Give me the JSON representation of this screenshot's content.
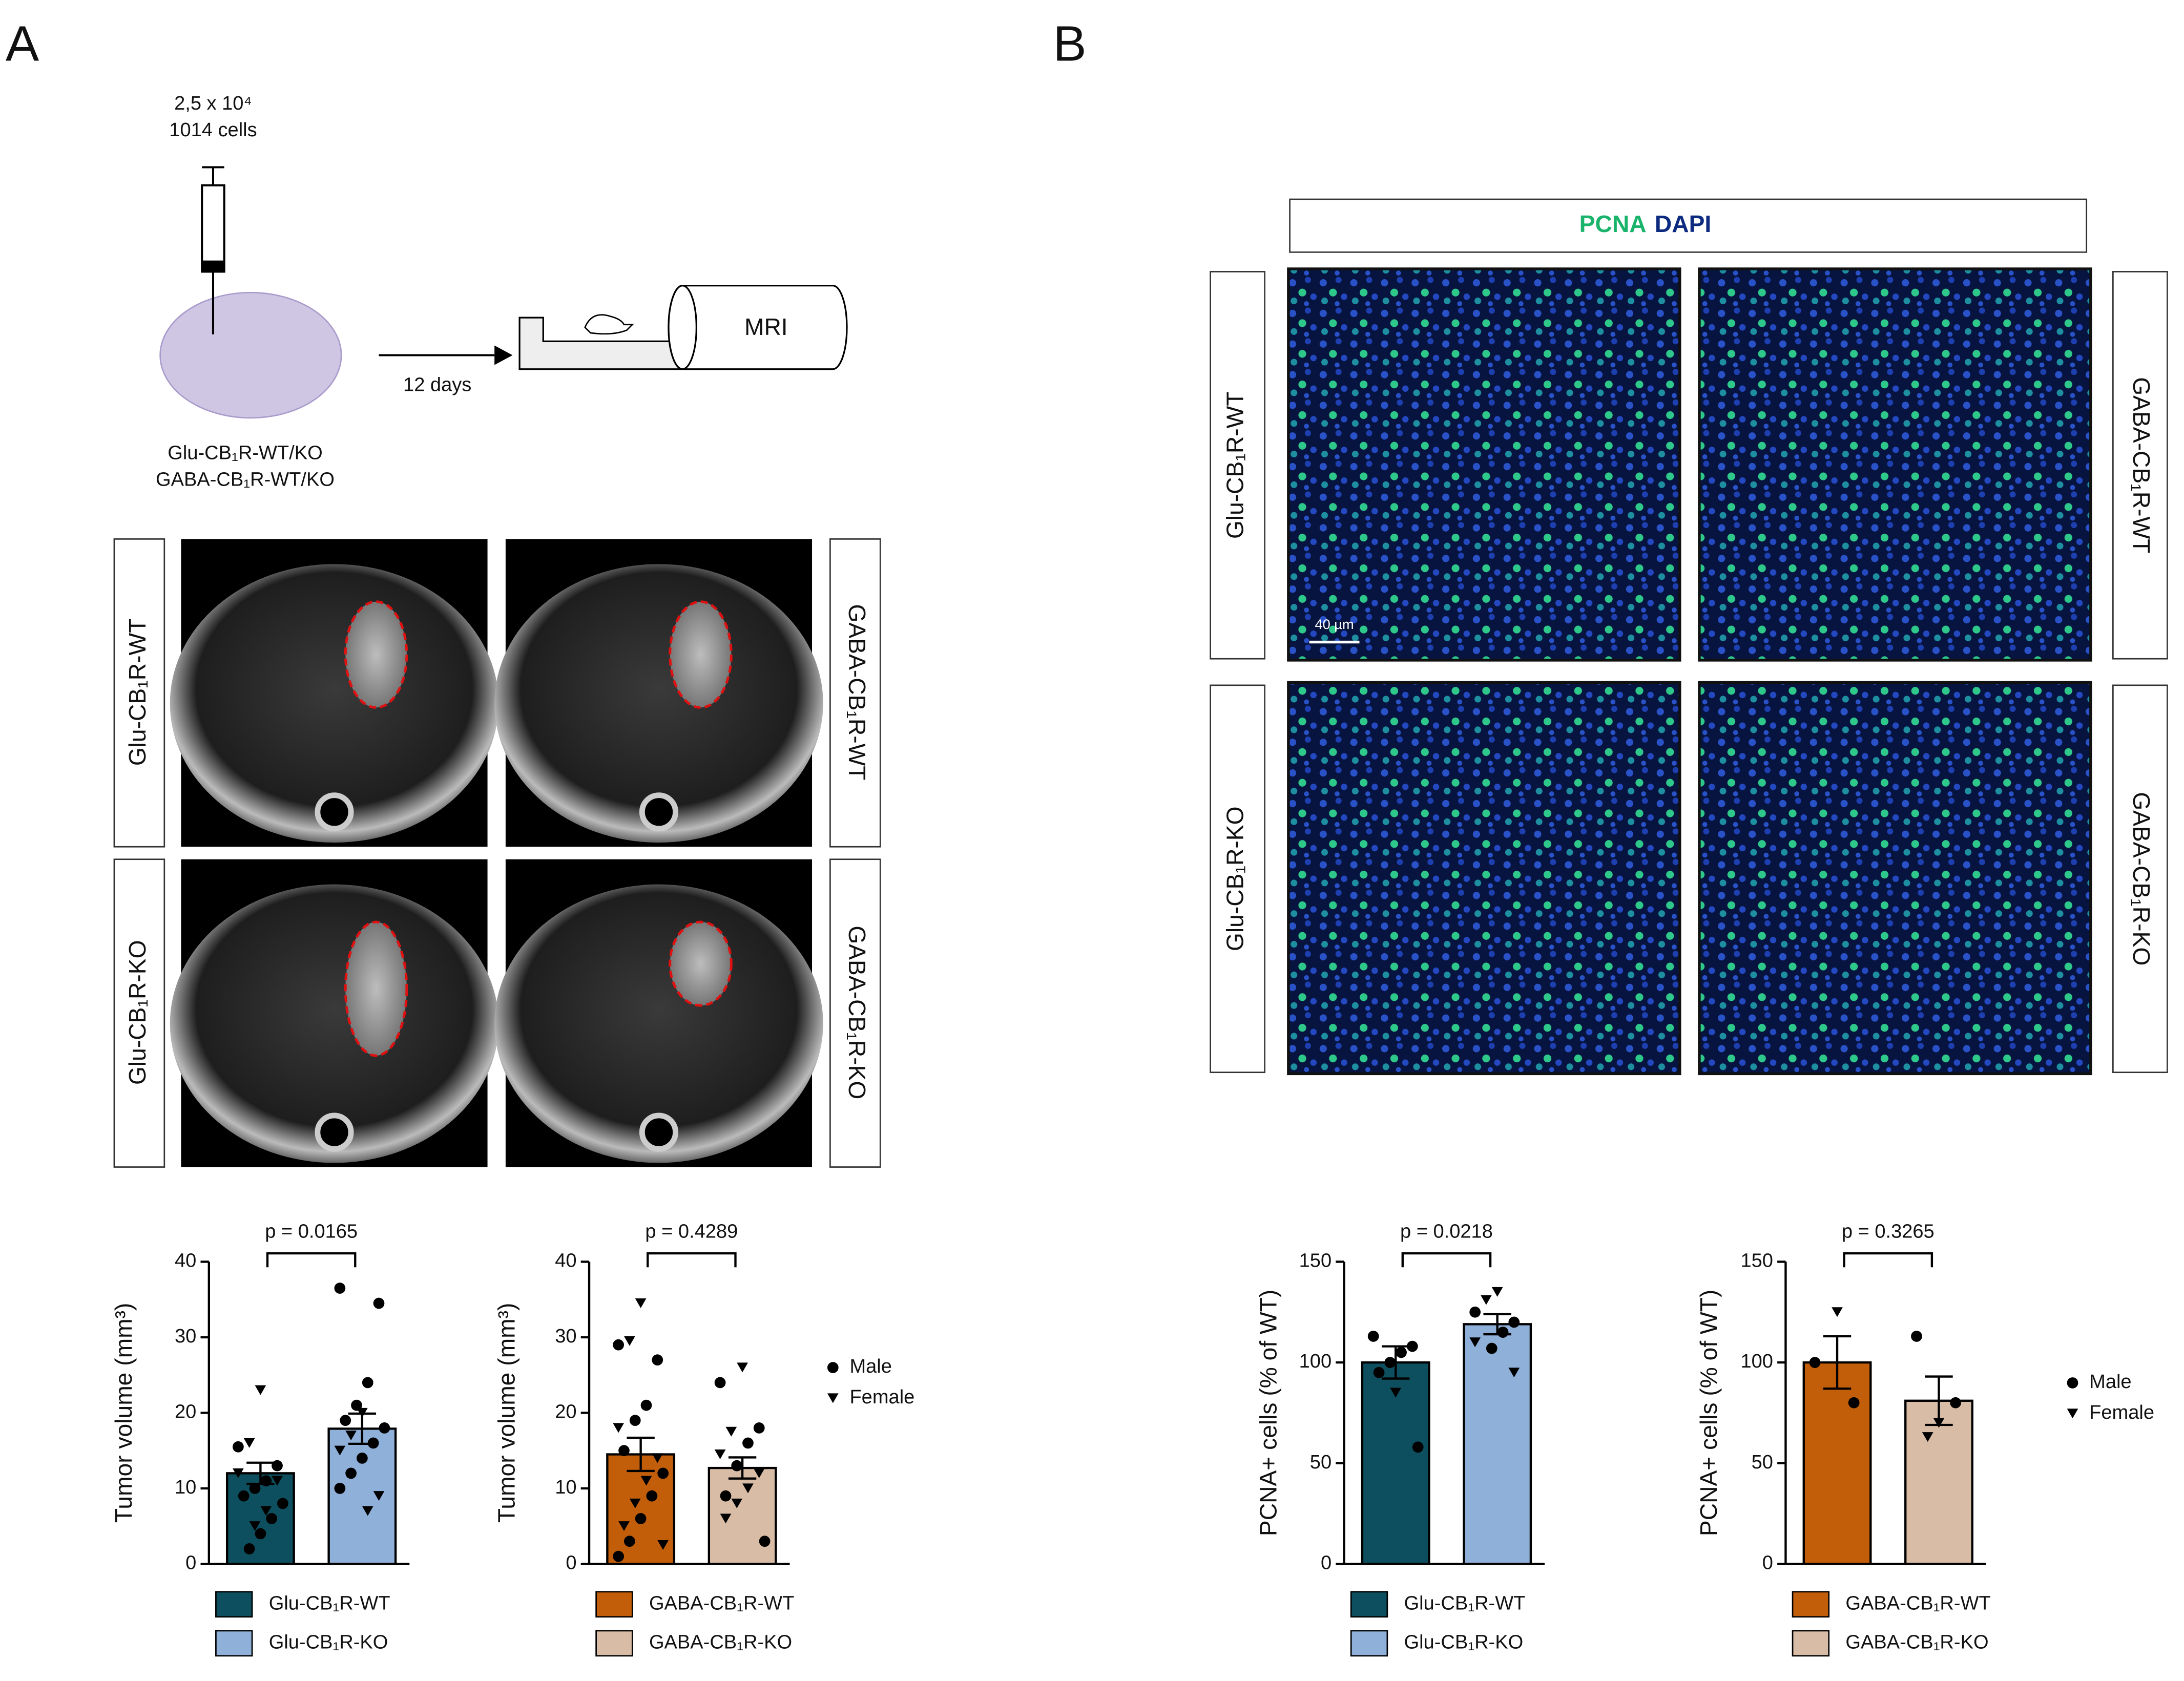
{
  "panels": {
    "a": "A",
    "b": "B"
  },
  "schematic": {
    "dose": "2,5 x 10⁴",
    "cells": "1014 cells",
    "time": "12 days",
    "machine": "MRI",
    "line1": "Glu-CB₁R-WT/KO",
    "line2": "GABA-CB₁R-WT/KO"
  },
  "mri_labels": [
    "Glu-CB₁R-WT",
    "GABA-CB₁R-WT",
    "Glu-CB₁R-KO",
    "GABA-CB₁R-KO"
  ],
  "stain": {
    "marker": "PCNA",
    "counter": "DAPI",
    "scale": "40 µm"
  },
  "if_labels": [
    "Glu-CB₁R-WT",
    "GABA-CB₁R-WT",
    "Glu-CB₁R-KO",
    "GABA-CB₁R-KO"
  ],
  "chart_data": [
    {
      "type": "bar",
      "ylabel": "Tumor volume (mm³)",
      "p_label": "p = 0.0165",
      "categories": [
        "Glu-CB₁R-WT",
        "Glu-CB₁R-KO"
      ],
      "colors": [
        "#0d4f5e",
        "#8fb0d9"
      ],
      "values": [
        12,
        17.9
      ],
      "errors": [
        1.4,
        2
      ],
      "ylim": [
        0,
        40
      ],
      "yticks": [
        0,
        10,
        20,
        30,
        40
      ],
      "points": {
        "Male": [
          [
            15.5,
            13,
            11,
            10,
            9,
            8,
            6,
            4,
            2
          ],
          [
            36.5,
            34.5,
            24,
            21,
            19,
            18,
            16,
            14,
            12,
            10
          ]
        ],
        "Female": [
          [
            23,
            16,
            12,
            11,
            7,
            5
          ],
          [
            20,
            17,
            15,
            9,
            7
          ]
        ]
      }
    },
    {
      "type": "bar",
      "ylabel": "Tumor volume (mm³)",
      "p_label": "p = 0.4289",
      "categories": [
        "GABA-CB₁R-WT",
        "GABA-CB₁R-KO"
      ],
      "colors": [
        "#c25e0a",
        "#d9bca5"
      ],
      "values": [
        14.5,
        12.7
      ],
      "errors": [
        2.2,
        1.4
      ],
      "ylim": [
        0,
        40
      ],
      "yticks": [
        0,
        10,
        20,
        30,
        40
      ],
      "points": {
        "Male": [
          [
            29,
            27,
            21,
            19,
            15,
            12,
            9,
            6,
            3,
            1
          ],
          [
            24,
            18,
            16,
            13,
            9,
            3
          ]
        ],
        "Female": [
          [
            34.5,
            29.5,
            18,
            14,
            11,
            8,
            5,
            2.5
          ],
          [
            26,
            17.5,
            14.5,
            12,
            10,
            8,
            6
          ]
        ]
      },
      "shape_legend": [
        "Male",
        "Female"
      ]
    },
    {
      "type": "bar",
      "ylabel": "PCNA+ cells (% of WT)",
      "p_label": "p = 0.0218",
      "categories": [
        "Glu-CB₁R-WT",
        "Glu-CB₁R-KO"
      ],
      "colors": [
        "#0d4f5e",
        "#8fb0d9"
      ],
      "values": [
        100,
        119
      ],
      "errors": [
        8,
        5
      ],
      "ylim": [
        0,
        150
      ],
      "yticks": [
        0,
        50,
        100,
        150
      ],
      "points": {
        "Male": [
          [
            113,
            108,
            105,
            100,
            95,
            58
          ],
          [
            125,
            120,
            115,
            107
          ]
        ],
        "Female": [
          [
            85
          ],
          [
            135,
            131,
            110,
            95
          ]
        ]
      }
    },
    {
      "type": "bar",
      "ylabel": "PCNA+ cells (% of WT)",
      "p_label": "p = 0.3265",
      "categories": [
        "GABA-CB₁R-WT",
        "GABA-CB₁R-KO"
      ],
      "colors": [
        "#c25e0a",
        "#d9bca5"
      ],
      "values": [
        100,
        81
      ],
      "errors": [
        13,
        12
      ],
      "ylim": [
        0,
        150
      ],
      "yticks": [
        0,
        50,
        100,
        150
      ],
      "points": {
        "Male": [
          [
            100,
            80
          ],
          [
            113,
            80
          ]
        ],
        "Female": [
          [
            125
          ],
          [
            70,
            63
          ]
        ]
      },
      "shape_legend": [
        "Male",
        "Female"
      ]
    }
  ]
}
